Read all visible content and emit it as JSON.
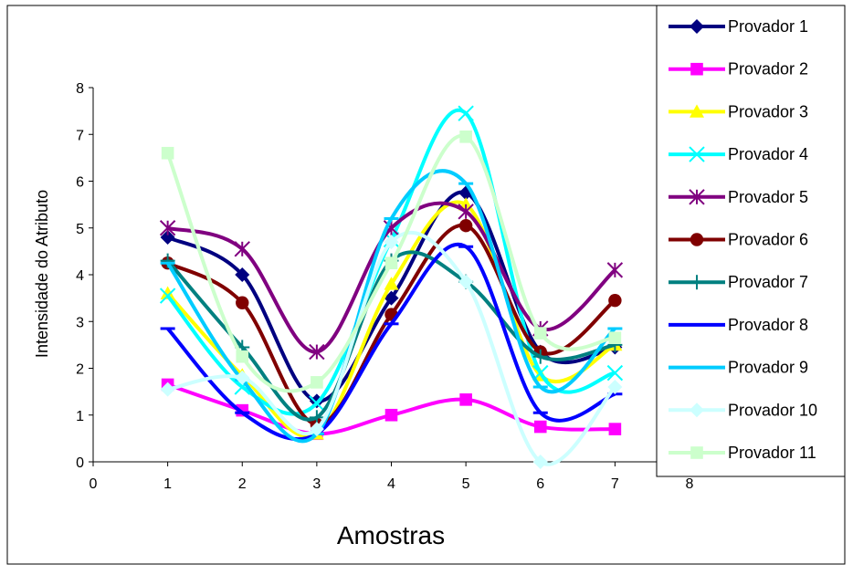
{
  "chart_data": {
    "type": "line",
    "title": "",
    "xlabel": "Amostras",
    "ylabel": "Intensidade do Atributo",
    "xlim": [
      0,
      8
    ],
    "ylim": [
      0,
      8
    ],
    "xticks": [
      "0",
      "1",
      "2",
      "3",
      "4",
      "5",
      "6",
      "7",
      "8"
    ],
    "yticks": [
      "0",
      "1",
      "2",
      "3",
      "4",
      "5",
      "6",
      "7",
      "8"
    ],
    "grid": false,
    "smooth": true,
    "legend_position": "right",
    "x": [
      1,
      2,
      3,
      4,
      5,
      6,
      7
    ],
    "series": [
      {
        "name": "Provador 1",
        "color": "#000080",
        "marker": "diamond",
        "values": [
          4.8,
          4.0,
          1.3,
          3.5,
          5.75,
          2.35,
          2.45
        ]
      },
      {
        "name": "Provador 2",
        "color": "#FF00FF",
        "marker": "square",
        "values": [
          1.65,
          1.1,
          0.6,
          1.0,
          1.33,
          0.75,
          0.7
        ]
      },
      {
        "name": "Provador 3",
        "color": "#FFFF00",
        "marker": "triangle",
        "values": [
          3.6,
          1.85,
          0.6,
          3.8,
          5.5,
          1.85,
          2.5
        ]
      },
      {
        "name": "Provador 4",
        "color": "#00FFFF",
        "marker": "x",
        "values": [
          3.55,
          1.6,
          1.25,
          4.75,
          7.45,
          1.9,
          1.9
        ]
      },
      {
        "name": "Provador 5",
        "color": "#800080",
        "marker": "star",
        "values": [
          5.0,
          4.55,
          2.35,
          5.0,
          5.35,
          2.85,
          4.1
        ]
      },
      {
        "name": "Provador 6",
        "color": "#800000",
        "marker": "circle",
        "values": [
          4.25,
          3.4,
          0.8,
          3.15,
          5.05,
          2.35,
          3.45
        ]
      },
      {
        "name": "Provador 7",
        "color": "#008080",
        "marker": "plus",
        "values": [
          4.3,
          2.45,
          0.95,
          4.3,
          3.85,
          2.25,
          2.5
        ]
      },
      {
        "name": "Provador 8",
        "color": "#0000FF",
        "marker": "dash",
        "values": [
          2.85,
          1.05,
          0.6,
          2.95,
          4.6,
          1.05,
          1.45
        ]
      },
      {
        "name": "Provador 9",
        "color": "#00CCFF",
        "marker": "dash",
        "values": [
          4.25,
          1.75,
          0.6,
          5.2,
          5.95,
          1.6,
          2.85
        ]
      },
      {
        "name": "Provador 10",
        "color": "#CCFFFF",
        "marker": "diamond",
        "values": [
          1.55,
          1.8,
          0.7,
          4.7,
          3.85,
          0.0,
          1.6
        ]
      },
      {
        "name": "Provador 11",
        "color": "#CCFFCC",
        "marker": "square",
        "values": [
          6.6,
          2.25,
          1.7,
          4.25,
          6.95,
          2.75,
          2.65
        ]
      }
    ]
  }
}
